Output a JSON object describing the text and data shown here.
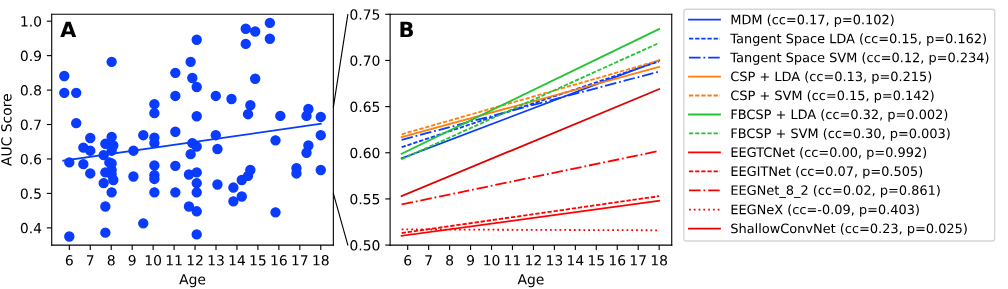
{
  "chart_data": [
    {
      "type": "scatter",
      "xlabel": "Age",
      "ylabel": "AUC Score",
      "annotations": [
        "A"
      ],
      "xlim": [
        5.16,
        18.6
      ],
      "ylim": [
        0.35,
        1.02
      ],
      "xticks": [
        6,
        7,
        8,
        9,
        10,
        11,
        12,
        13,
        14,
        15,
        16,
        17,
        18
      ],
      "yticks": [
        0.4,
        0.5,
        0.6,
        0.7,
        0.8,
        0.9,
        {
          "value": 1.0,
          "label": "1.0"
        }
      ],
      "grid": false,
      "series": [
        {
          "type": "scatter",
          "marker": "circle",
          "color": "#0a3cff",
          "x": [
            5.76,
            5.76,
            6.33,
            6.33,
            6.0,
            6.0,
            6.67,
            6.67,
            7.0,
            7.0,
            7.0,
            7.64,
            7.72,
            7.64,
            7.72,
            7.72,
            7.72,
            8.02,
            8.02,
            8.1,
            8.02,
            7.91,
            8.02,
            8.02,
            8.02,
            8.1,
            8.02,
            9.06,
            9.06,
            9.53,
            9.53,
            10.06,
            10.06,
            10.06,
            10.06,
            10.06,
            10.06,
            10.06,
            10.06,
            11.06,
            11.06,
            11.06,
            11.06,
            11.06,
            11.79,
            11.87,
            11.87,
            11.79,
            11.71,
            11.71,
            12.08,
            12.08,
            12.08,
            12.08,
            12.08,
            12.08,
            12.08,
            12.08,
            12.08,
            12.99,
            12.99,
            13.07,
            13.07,
            13.74,
            13.83,
            13.83,
            14.23,
            14.23,
            14.42,
            14.42,
            14.87,
            14.87,
            14.64,
            14.53,
            14.64,
            14.53,
            15.57,
            15.57,
            15.84,
            15.84,
            16.07,
            16.84,
            16.84,
            17.41,
            17.32,
            17.41,
            17.32,
            18.0,
            18.0,
            18.0
          ],
          "values": [
            0.841,
            0.792,
            0.792,
            0.704,
            0.59,
            0.375,
            0.585,
            0.633,
            0.661,
            0.624,
            0.558,
            0.611,
            0.644,
            0.53,
            0.561,
            0.462,
            0.386,
            0.882,
            0.664,
            0.639,
            0.624,
            0.59,
            0.587,
            0.568,
            0.555,
            0.539,
            0.503,
            0.624,
            0.549,
            0.669,
            0.413,
            0.759,
            0.733,
            0.662,
            0.646,
            0.581,
            0.553,
            0.542,
            0.503,
            0.85,
            0.783,
            0.679,
            0.58,
            0.503,
            0.882,
            0.835,
            0.646,
            0.614,
            0.555,
            0.462,
            0.946,
            0.809,
            0.724,
            0.636,
            0.561,
            0.53,
            0.503,
            0.448,
            0.381,
            0.783,
            0.669,
            0.629,
            0.526,
            0.774,
            0.517,
            0.477,
            0.539,
            0.491,
            0.978,
            0.934,
            0.97,
            0.833,
            0.756,
            0.73,
            0.568,
            0.551,
            0.995,
            0.949,
            0.654,
            0.445,
            0.725,
            0.573,
            0.558,
            0.745,
            0.725,
            0.639,
            0.618,
            0.722,
            0.669,
            0.568
          ]
        },
        {
          "type": "line",
          "color": "#0a3cff",
          "line_style": "solid",
          "x": [
            5.71,
            18.0
          ],
          "values": [
            0.595,
            0.702
          ]
        }
      ]
    },
    {
      "type": "line",
      "xlabel": "Age",
      "annotations": [
        "B"
      ],
      "xlim": [
        5.16,
        18.6
      ],
      "ylim": [
        0.5,
        0.75
      ],
      "xticks": [
        6,
        7,
        8,
        9,
        10,
        11,
        12,
        13,
        14,
        15,
        16,
        17,
        18
      ],
      "yticks": [
        {
          "value": 0.5,
          "label": "0.50"
        },
        0.55,
        {
          "value": 0.6,
          "label": "0.60"
        },
        0.65,
        {
          "value": 0.7,
          "label": "0.70"
        },
        0.75
      ],
      "grid": false,
      "legend": "right",
      "marker": "none",
      "series": [
        {
          "name": "MDM (cc=0.17, p=0.102)",
          "color": "#0a3cff",
          "line_style": "solid",
          "x": [
            5.71,
            18.0
          ],
          "values": [
            0.594,
            0.7
          ]
        },
        {
          "name": "Tangent Space LDA (cc=0.15, p=0.162)",
          "color": "#0a3cff",
          "line_style": "dashed",
          "x": [
            5.71,
            18.0
          ],
          "values": [
            0.606,
            0.699
          ]
        },
        {
          "name": "Tangent Space SVM (cc=0.12, p=0.234)",
          "color": "#0a3cff",
          "line_style": "dashdot",
          "x": [
            5.71,
            18.0
          ],
          "values": [
            0.614,
            0.688
          ]
        },
        {
          "name": "CSP + LDA (cc=0.13, p=0.215)",
          "color": "#ff7f0e",
          "line_style": "solid",
          "x": [
            5.71,
            18.0
          ],
          "values": [
            0.617,
            0.693
          ]
        },
        {
          "name": "CSP + SVM (cc=0.15, p=0.142)",
          "color": "#ff7f0e",
          "line_style": "dashed",
          "x": [
            5.71,
            18.0
          ],
          "values": [
            0.62,
            0.7
          ]
        },
        {
          "name": "FBCSP + LDA (cc=0.32, p=0.002)",
          "color": "#22c433",
          "line_style": "solid",
          "x": [
            5.71,
            18.0
          ],
          "values": [
            0.599,
            0.734
          ]
        },
        {
          "name": "FBCSP + SVM (cc=0.30, p=0.003)",
          "color": "#22c433",
          "line_style": "dashed",
          "x": [
            5.71,
            18.0
          ],
          "values": [
            0.593,
            0.719
          ]
        },
        {
          "name": "EEGTCNet (cc=0.00, p=0.992)",
          "color": "#ff0000",
          "line_style": "solid",
          "x": [
            5.71,
            18.0
          ],
          "values": [
            0.51,
            0.548
          ]
        },
        {
          "name": "EEGITNet (cc=0.07, p=0.505)",
          "color": "#ff0000",
          "line_style": "dashed",
          "x": [
            5.71,
            18.0
          ],
          "values": [
            0.513,
            0.553
          ]
        },
        {
          "name": "EEGNet_8_2 (cc=0.02, p=0.861)",
          "color": "#ff0000",
          "line_style": "dashdot",
          "x": [
            5.71,
            18.0
          ],
          "values": [
            0.544,
            0.602
          ]
        },
        {
          "name": "EEGNeX (cc=-0.09, p=0.403)",
          "color": "#ff0000",
          "line_style": "dotted",
          "x": [
            5.71,
            18.0
          ],
          "values": [
            0.517,
            0.516
          ]
        },
        {
          "name": "ShallowConvNet (cc=0.23, p=0.025)",
          "color": "#e00000",
          "line_style": "solid",
          "x": [
            5.71,
            18.0
          ],
          "values": [
            0.553,
            0.669
          ]
        }
      ]
    }
  ]
}
